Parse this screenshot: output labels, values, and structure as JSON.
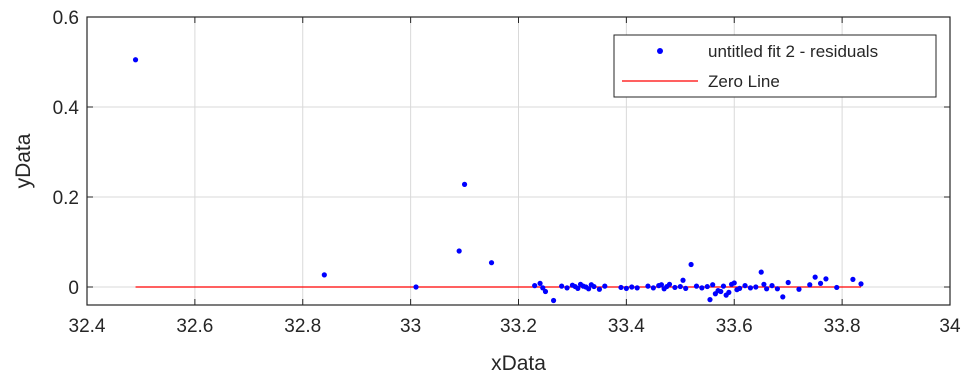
{
  "chart_data": {
    "type": "scatter",
    "xlabel": "xData",
    "ylabel": "yData",
    "xlim": [
      32.4,
      34
    ],
    "ylim": [
      -0.04,
      0.6
    ],
    "x_ticks": [
      "32.4",
      "32.6",
      "32.8",
      "33",
      "33.2",
      "33.4",
      "33.6",
      "33.8",
      "34"
    ],
    "x_tick_values": [
      32.4,
      32.6,
      32.8,
      33.0,
      33.2,
      33.4,
      33.6,
      33.8,
      34.0
    ],
    "y_ticks": [
      "0",
      "0.2",
      "0.4",
      "0.6"
    ],
    "y_tick_values": [
      0,
      0.2,
      0.4,
      0.6
    ],
    "grid": true,
    "legend_position": "top-right",
    "legend": [
      "untitled fit 2 - residuals",
      "Zero Line"
    ],
    "series": [
      {
        "name": "untitled fit 2 - residuals",
        "style": "markers",
        "color": "#0000ff",
        "x": [
          32.49,
          32.84,
          33.01,
          33.09,
          33.1,
          33.15,
          33.23,
          33.24,
          33.245,
          33.25,
          33.265,
          33.28,
          33.29,
          33.3,
          33.305,
          33.31,
          33.315,
          33.32,
          33.325,
          33.33,
          33.335,
          33.34,
          33.35,
          33.36,
          33.39,
          33.4,
          33.41,
          33.42,
          33.44,
          33.45,
          33.46,
          33.465,
          33.47,
          33.475,
          33.48,
          33.49,
          33.5,
          33.505,
          33.51,
          33.52,
          33.53,
          33.54,
          33.55,
          33.555,
          33.56,
          33.565,
          33.57,
          33.575,
          33.58,
          33.585,
          33.59,
          33.595,
          33.6,
          33.605,
          33.61,
          33.62,
          33.63,
          33.64,
          33.65,
          33.655,
          33.66,
          33.67,
          33.68,
          33.69,
          33.7,
          33.72,
          33.74,
          33.75,
          33.76,
          33.77,
          33.79,
          33.82,
          33.835
        ],
        "y": [
          0.505,
          0.027,
          0.0,
          0.08,
          0.228,
          0.054,
          0.003,
          0.008,
          -0.002,
          -0.01,
          -0.03,
          0.002,
          -0.002,
          0.004,
          0.001,
          -0.003,
          0.006,
          0.002,
          0.0,
          -0.004,
          0.005,
          0.001,
          -0.005,
          0.002,
          -0.001,
          -0.003,
          0.0,
          -0.002,
          0.002,
          -0.002,
          0.003,
          0.005,
          -0.004,
          0.001,
          0.006,
          -0.001,
          0.001,
          0.015,
          -0.003,
          0.05,
          0.002,
          -0.002,
          0.001,
          -0.028,
          0.005,
          -0.015,
          -0.008,
          -0.01,
          0.002,
          -0.018,
          -0.012,
          0.006,
          0.009,
          -0.006,
          -0.003,
          0.003,
          -0.002,
          0.0,
          0.033,
          0.006,
          -0.004,
          0.003,
          -0.004,
          -0.022,
          0.01,
          -0.005,
          0.005,
          0.022,
          0.008,
          0.018,
          -0.001,
          0.017,
          0.007
        ]
      },
      {
        "name": "Zero Line",
        "style": "line",
        "color": "#ff0000",
        "x": [
          32.49,
          33.835
        ],
        "y": [
          0,
          0
        ]
      }
    ]
  }
}
